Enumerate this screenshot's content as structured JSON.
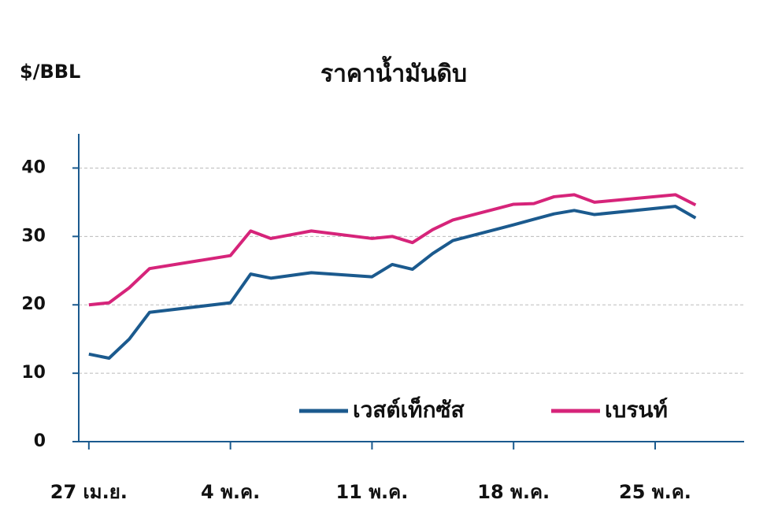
{
  "chart_data": {
    "type": "line",
    "title": "ราคาน้ำมันดิบ",
    "y_label": "$/BBL",
    "x": [
      0,
      1,
      2,
      3,
      7,
      8,
      9,
      11,
      14,
      15,
      16,
      17,
      18,
      21,
      22,
      23,
      24,
      25,
      29,
      30
    ],
    "xlim": [
      -0.5,
      32.4
    ],
    "xticks": [
      {
        "value": 0,
        "label": "27 เม.ย."
      },
      {
        "value": 7,
        "label": "4 พ.ค."
      },
      {
        "value": 14,
        "label": "11 พ.ค."
      },
      {
        "value": 21,
        "label": "18 พ.ค."
      },
      {
        "value": 28,
        "label": "25 พ.ค."
      }
    ],
    "ylim": [
      0,
      45
    ],
    "yticks": [
      0,
      10,
      20,
      30,
      40
    ],
    "grid": true,
    "legend": "lower right",
    "series": [
      {
        "name": "เวสต์เท็กซัส",
        "color": "#1b5a8e",
        "values": [
          12.8,
          12.2,
          15.0,
          18.9,
          20.3,
          24.5,
          23.9,
          24.7,
          24.1,
          25.9,
          25.2,
          27.5,
          29.4,
          31.7,
          32.5,
          33.3,
          33.8,
          33.2,
          34.4,
          32.7
        ]
      },
      {
        "name": "เบรนท์",
        "color": "#d6247a",
        "values": [
          20.0,
          20.3,
          22.5,
          25.3,
          27.2,
          30.8,
          29.7,
          30.8,
          29.7,
          30.0,
          29.1,
          31.0,
          32.4,
          34.7,
          34.8,
          35.8,
          36.1,
          35.0,
          36.1,
          34.6
        ]
      }
    ]
  }
}
